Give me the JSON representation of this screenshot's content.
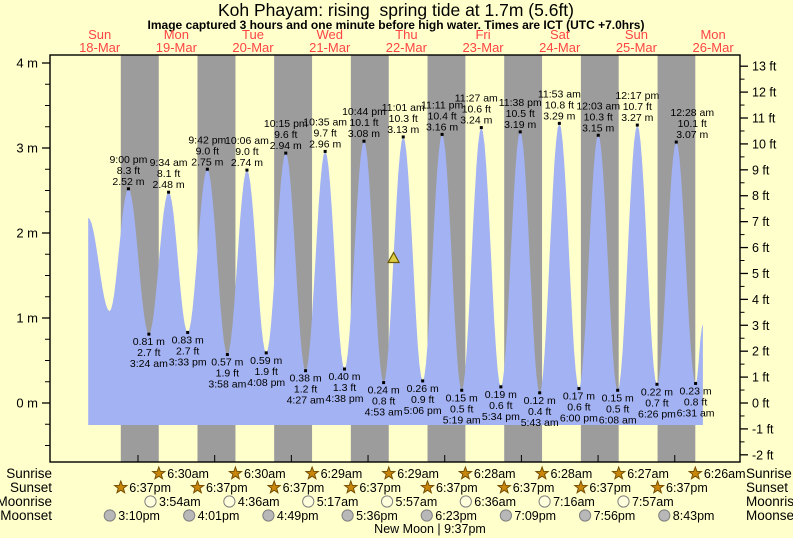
{
  "title": "Koh Phayam: rising  spring tide at 1.7m (5.6ft)",
  "subtitle": "Image captured 3 hours and one minute before high water. Times are ICT (UTC +7.0hrs)",
  "colors": {
    "background": "#ffffcc",
    "night_band": "#9c9c9c",
    "tide_fill": "#a3b2f2",
    "day_label": "#ff4444",
    "text": "#000000",
    "sun_icon": "#c8860a",
    "sun_icon_edge": "#6e4a00",
    "moonrise_icon": "#ffffdd",
    "moonset_icon": "#b8b8b8",
    "icon_edge": "#808080",
    "marker_fill": "#ddcc44",
    "marker_edge": "#6b5a00"
  },
  "days": [
    {
      "name": "Sun",
      "date": "18-Mar"
    },
    {
      "name": "Mon",
      "date": "19-Mar"
    },
    {
      "name": "Tue",
      "date": "20-Mar"
    },
    {
      "name": "Wed",
      "date": "21-Mar"
    },
    {
      "name": "Thu",
      "date": "22-Mar"
    },
    {
      "name": "Fri",
      "date": "23-Mar"
    },
    {
      "name": "Sat",
      "date": "24-Mar"
    },
    {
      "name": "Sun",
      "date": "25-Mar"
    },
    {
      "name": "Mon",
      "date": "26-Mar"
    }
  ],
  "y_axis_left": {
    "unit": "m",
    "major_labels": [
      {
        "v": 4,
        "label": "4 m"
      },
      {
        "v": 3,
        "label": "3 m"
      },
      {
        "v": 2,
        "label": "2 m"
      },
      {
        "v": 1,
        "label": "1 m"
      },
      {
        "v": 0,
        "label": "0 m"
      }
    ]
  },
  "y_axis_right": {
    "unit": "ft",
    "major_labels": [
      {
        "v": 13,
        "label": "13 ft"
      },
      {
        "v": 12,
        "label": "12 ft"
      },
      {
        "v": 11,
        "label": "11 ft"
      },
      {
        "v": 10,
        "label": "10 ft"
      },
      {
        "v": 9,
        "label": "9 ft"
      },
      {
        "v": 8,
        "label": "8 ft"
      },
      {
        "v": 7,
        "label": "7 ft"
      },
      {
        "v": 6,
        "label": "6 ft"
      },
      {
        "v": 5,
        "label": "5 ft"
      },
      {
        "v": 4,
        "label": "4 ft"
      },
      {
        "v": 3,
        "label": "3 ft"
      },
      {
        "v": 2,
        "label": "2 ft"
      },
      {
        "v": 1,
        "label": "1 ft"
      },
      {
        "v": 0,
        "label": "0 ft"
      },
      {
        "v": -1,
        "label": "-1 ft"
      },
      {
        "v": -2,
        "label": "-2 ft"
      }
    ]
  },
  "chart_data": {
    "type": "area",
    "title": "Koh Phayam tide curve, 18-Mar to 26-Mar",
    "x_unit": "hours since 00:00 Sun 18-Mar (ICT)",
    "y_unit_left": "metres",
    "y_unit_right": "feet",
    "ylim_m": [
      -0.69,
      4.09
    ],
    "highs": [
      {
        "t": 21.0,
        "h": 2.52,
        "m": "2.52 m",
        "ft": "8.3 ft",
        "time": "9:00 pm"
      },
      {
        "t": 33.57,
        "h": 2.48,
        "m": "2.48 m",
        "ft": "8.1 ft",
        "time": "9:34 am"
      },
      {
        "t": 45.7,
        "h": 2.75,
        "m": "2.75 m",
        "ft": "9.0 ft",
        "time": "9:42 pm"
      },
      {
        "t": 58.1,
        "h": 2.74,
        "m": "2.74 m",
        "ft": "9.0 ft",
        "time": "10:06 am"
      },
      {
        "t": 70.25,
        "h": 2.94,
        "m": "2.94 m",
        "ft": "9.6 ft",
        "time": "10:15 pm"
      },
      {
        "t": 82.58,
        "h": 2.96,
        "m": "2.96 m",
        "ft": "9.7 ft",
        "time": "10:35 am"
      },
      {
        "t": 94.73,
        "h": 3.08,
        "m": "3.08 m",
        "ft": "10.1 ft",
        "time": "10:44 pm"
      },
      {
        "t": 107.02,
        "h": 3.13,
        "m": "3.13 m",
        "ft": "10.3 ft",
        "time": "11:01 am"
      },
      {
        "t": 119.18,
        "h": 3.16,
        "m": "3.16 m",
        "ft": "10.4 ft",
        "time": "11:11 pm"
      },
      {
        "t": 131.45,
        "h": 3.24,
        "m": "3.24 m",
        "ft": "10.6 ft",
        "time": "11:27 am"
      },
      {
        "t": 143.63,
        "h": 3.19,
        "m": "3.19 m",
        "ft": "10.5 ft",
        "time": "11:38 pm"
      },
      {
        "t": 155.88,
        "h": 3.29,
        "m": "3.29 m",
        "ft": "10.8 ft",
        "time": "11:53 am"
      },
      {
        "t": 168.05,
        "h": 3.15,
        "m": "3.15 m",
        "ft": "10.3 ft",
        "time": "12:03 am"
      },
      {
        "t": 180.28,
        "h": 3.27,
        "m": "3.27 m",
        "ft": "10.7 ft",
        "time": "12:17 pm"
      },
      {
        "t": 192.47,
        "h": 3.07,
        "m": "3.07 m",
        "ft": "10.1 ft",
        "time": "12:28 am"
      }
    ],
    "lows": [
      {
        "t": 27.4,
        "h": 0.81,
        "m": "0.81 m",
        "ft": "2.7 ft",
        "time": "3:24 am"
      },
      {
        "t": 39.55,
        "h": 0.83,
        "m": "0.83 m",
        "ft": "2.7 ft",
        "time": "3:33 pm"
      },
      {
        "t": 51.97,
        "h": 0.57,
        "m": "0.57 m",
        "ft": "1.9 ft",
        "time": "3:58 am"
      },
      {
        "t": 64.13,
        "h": 0.59,
        "m": "0.59 m",
        "ft": "1.9 ft",
        "time": "4:08 pm"
      },
      {
        "t": 76.45,
        "h": 0.38,
        "m": "0.38 m",
        "ft": "1.2 ft",
        "time": "4:27 am"
      },
      {
        "t": 88.63,
        "h": 0.4,
        "m": "0.40 m",
        "ft": "1.3 ft",
        "time": "4:38 pm"
      },
      {
        "t": 100.88,
        "h": 0.24,
        "m": "0.24 m",
        "ft": "0.8 ft",
        "time": "4:53 am"
      },
      {
        "t": 113.1,
        "h": 0.26,
        "m": "0.26 m",
        "ft": "0.9 ft",
        "time": "5:06 pm"
      },
      {
        "t": 125.32,
        "h": 0.15,
        "m": "0.15 m",
        "ft": "0.5 ft",
        "time": "5:19 am"
      },
      {
        "t": 137.57,
        "h": 0.19,
        "m": "0.19 m",
        "ft": "0.6 ft",
        "time": "5:34 pm"
      },
      {
        "t": 149.72,
        "h": 0.12,
        "m": "0.12 m",
        "ft": "0.4 ft",
        "time": "5:43 am"
      },
      {
        "t": 162.0,
        "h": 0.17,
        "m": "0.17 m",
        "ft": "0.6 ft",
        "time": "6:00 pm"
      },
      {
        "t": 174.13,
        "h": 0.15,
        "m": "0.15 m",
        "ft": "0.5 ft",
        "time": "6:08 am"
      },
      {
        "t": 186.43,
        "h": 0.22,
        "m": "0.22 m",
        "ft": "0.7 ft",
        "time": "6:26 pm"
      },
      {
        "t": 198.52,
        "h": 0.23,
        "m": "0.23 m",
        "ft": "0.8 ft",
        "time": "6:31 am"
      }
    ],
    "edge_points": [
      {
        "t": 8.4,
        "h": 2.18
      },
      {
        "t": 15.1,
        "h": 1.08
      },
      {
        "t": 200.8,
        "h": 0.92
      }
    ],
    "current_marker": {
      "t": 104.0,
      "h": 1.7
    }
  },
  "almanac": {
    "row_labels": [
      "Sunrise",
      "Sunset",
      "Moonrise",
      "Moonset"
    ],
    "sunrise": [
      {
        "t": 30.5,
        "time": "6:30am"
      },
      {
        "t": 54.5,
        "time": "6:30am"
      },
      {
        "t": 78.483,
        "time": "6:29am"
      },
      {
        "t": 102.483,
        "time": "6:29am"
      },
      {
        "t": 126.467,
        "time": "6:28am"
      },
      {
        "t": 150.467,
        "time": "6:28am"
      },
      {
        "t": 174.45,
        "time": "6:27am"
      },
      {
        "t": 198.433,
        "time": "6:26am"
      }
    ],
    "sunset": [
      {
        "t": 18.617,
        "time": "6:37pm"
      },
      {
        "t": 42.617,
        "time": "6:37pm"
      },
      {
        "t": 66.617,
        "time": "6:37pm"
      },
      {
        "t": 90.617,
        "time": "6:37pm"
      },
      {
        "t": 114.617,
        "time": "6:37pm"
      },
      {
        "t": 138.617,
        "time": "6:37pm"
      },
      {
        "t": 162.617,
        "time": "6:37pm"
      },
      {
        "t": 186.617,
        "time": "6:37pm"
      }
    ],
    "moonrise": [
      {
        "t": 27.9,
        "time": "3:54am"
      },
      {
        "t": 52.6,
        "time": "4:36am"
      },
      {
        "t": 77.283,
        "time": "5:17am"
      },
      {
        "t": 101.95,
        "time": "5:57am"
      },
      {
        "t": 126.6,
        "time": "6:36am"
      },
      {
        "t": 151.267,
        "time": "7:16am"
      },
      {
        "t": 175.95,
        "time": "7:57am"
      }
    ],
    "moonset": [
      {
        "t": 15.167,
        "time": "3:10pm"
      },
      {
        "t": 40.017,
        "time": "4:01pm"
      },
      {
        "t": 64.817,
        "time": "4:49pm"
      },
      {
        "t": 89.6,
        "time": "5:36pm"
      },
      {
        "t": 114.383,
        "time": "6:23pm"
      },
      {
        "t": 139.15,
        "time": "7:09pm"
      },
      {
        "t": 163.933,
        "time": "7:56pm"
      },
      {
        "t": 188.717,
        "time": "8:43pm"
      }
    ],
    "new_moon": "New Moon | 9:37pm"
  }
}
